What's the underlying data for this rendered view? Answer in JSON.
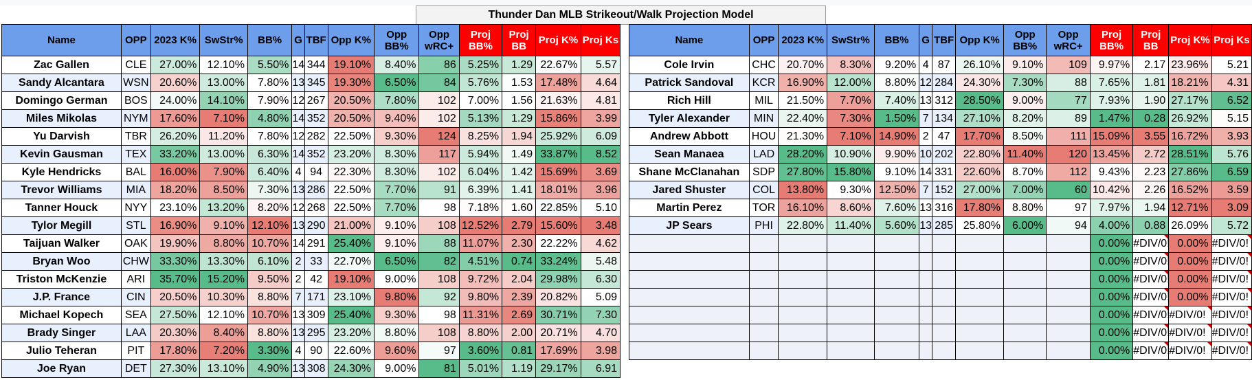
{
  "title": "Thunder Dan MLB Strikeout/Walk Projection Model",
  "colors": {
    "header_blue": "#6d9eeb",
    "header_red": "#ff0000",
    "good_strong": "#57bb8a",
    "bad_strong": "#e67c73",
    "row_stripe": "#e8f0fe"
  },
  "headers": [
    "Name",
    "OPP",
    "2023 K%",
    "SwStr%",
    "BB%",
    "G",
    "TBF",
    "Opp K%",
    "Opp BB%",
    "Opp wRC+",
    "Proj BB%",
    "Proj BB",
    "Proj K%",
    "Proj Ks"
  ],
  "left_rows": [
    [
      "Zac Gallen",
      "CLE",
      "27.00%",
      "12.10%",
      "5.50%",
      "14",
      "344",
      "19.10%",
      "8.40%",
      "86",
      "5.25%",
      "1.29",
      "22.67%",
      "5.57"
    ],
    [
      "Sandy Alcantara",
      "WSN",
      "20.60%",
      "13.00%",
      "7.80%",
      "13",
      "345",
      "19.30%",
      "6.50%",
      "84",
      "5.76%",
      "1.53",
      "17.48%",
      "4.64"
    ],
    [
      "Domingo German",
      "BOS",
      "24.00%",
      "14.10%",
      "7.90%",
      "12",
      "267",
      "20.50%",
      "7.80%",
      "102",
      "7.00%",
      "1.56",
      "21.63%",
      "4.81"
    ],
    [
      "Miles Mikolas",
      "NYM",
      "17.60%",
      "7.10%",
      "4.80%",
      "14",
      "352",
      "20.50%",
      "9.40%",
      "102",
      "5.13%",
      "1.29",
      "15.86%",
      "3.99"
    ],
    [
      "Yu Darvish",
      "TBR",
      "26.20%",
      "11.20%",
      "7.80%",
      "12",
      "282",
      "22.50%",
      "9.30%",
      "124",
      "8.25%",
      "1.94",
      "25.92%",
      "6.09"
    ],
    [
      "Kevin Gausman",
      "TEX",
      "33.20%",
      "13.00%",
      "6.30%",
      "14",
      "352",
      "23.20%",
      "8.30%",
      "117",
      "5.94%",
      "1.49",
      "33.87%",
      "8.52"
    ],
    [
      "Kyle Hendricks",
      "BAL",
      "16.00%",
      "7.90%",
      "6.40%",
      "4",
      "94",
      "22.30%",
      "8.30%",
      "102",
      "6.04%",
      "1.42",
      "15.69%",
      "3.69"
    ],
    [
      "Trevor Williams",
      "MIA",
      "18.20%",
      "8.50%",
      "7.30%",
      "13",
      "286",
      "22.50%",
      "7.70%",
      "91",
      "6.39%",
      "1.41",
      "18.01%",
      "3.96"
    ],
    [
      "Tanner Houck",
      "NYY",
      "23.10%",
      "13.20%",
      "8.20%",
      "12",
      "268",
      "22.50%",
      "7.70%",
      "98",
      "7.18%",
      "1.60",
      "22.85%",
      "5.10"
    ],
    [
      "Tylor Megill",
      "STL",
      "16.90%",
      "9.10%",
      "12.10%",
      "13",
      "290",
      "21.00%",
      "9.10%",
      "108",
      "12.52%",
      "2.79",
      "15.60%",
      "3.48"
    ],
    [
      "Taijuan Walker",
      "OAK",
      "19.90%",
      "8.80%",
      "10.70%",
      "14",
      "291",
      "25.40%",
      "9.10%",
      "88",
      "11.07%",
      "2.30",
      "22.22%",
      "4.62"
    ],
    [
      "Bryan Woo",
      "CHW",
      "33.30%",
      "13.30%",
      "6.10%",
      "2",
      "33",
      "22.70%",
      "6.50%",
      "82",
      "4.51%",
      "0.74",
      "33.24%",
      "5.48"
    ],
    [
      "Triston McKenzie",
      "ARI",
      "35.70%",
      "15.20%",
      "9.50%",
      "2",
      "42",
      "19.10%",
      "9.00%",
      "108",
      "9.72%",
      "2.04",
      "29.98%",
      "6.30"
    ],
    [
      "J.P. France",
      "CIN",
      "20.50%",
      "10.30%",
      "8.80%",
      "7",
      "171",
      "23.10%",
      "9.80%",
      "92",
      "9.80%",
      "2.39",
      "20.82%",
      "5.09"
    ],
    [
      "Michael Kopech",
      "SEA",
      "27.50%",
      "12.10%",
      "10.70%",
      "13",
      "309",
      "25.40%",
      "9.30%",
      "98",
      "11.31%",
      "2.69",
      "30.71%",
      "7.30"
    ],
    [
      "Brady Singer",
      "LAA",
      "20.30%",
      "8.40%",
      "8.80%",
      "13",
      "295",
      "23.20%",
      "8.80%",
      "108",
      "8.80%",
      "2.00",
      "20.71%",
      "4.70"
    ],
    [
      "Julio Teheran",
      "PIT",
      "17.80%",
      "7.20%",
      "3.30%",
      "4",
      "90",
      "22.60%",
      "9.60%",
      "97",
      "3.60%",
      "0.81",
      "17.69%",
      "3.98"
    ],
    [
      "Joe Ryan",
      "DET",
      "27.30%",
      "13.10%",
      "4.90%",
      "13",
      "308",
      "24.30%",
      "9.00%",
      "81",
      "5.01%",
      "1.19",
      "29.17%",
      "6.91"
    ]
  ],
  "right_rows": [
    [
      "Cole Irvin",
      "CHC",
      "20.70%",
      "8.30%",
      "9.20%",
      "4",
      "87",
      "26.10%",
      "9.10%",
      "109",
      "9.97%",
      "2.17",
      "23.96%",
      "5.21"
    ],
    [
      "Patrick Sandoval",
      "KCR",
      "16.90%",
      "12.00%",
      "8.80%",
      "12",
      "284",
      "24.30%",
      "7.30%",
      "88",
      "7.65%",
      "1.81",
      "18.21%",
      "4.31"
    ],
    [
      "Rich Hill",
      "MIL",
      "21.50%",
      "7.70%",
      "7.40%",
      "13",
      "312",
      "28.50%",
      "9.00%",
      "77",
      "7.93%",
      "1.90",
      "27.17%",
      "6.52"
    ],
    [
      "Tyler Alexander",
      "MIN",
      "22.40%",
      "7.30%",
      "1.50%",
      "7",
      "134",
      "27.10%",
      "8.20%",
      "89",
      "1.47%",
      "0.28",
      "26.92%",
      "5.15"
    ],
    [
      "Andrew Abbott",
      "HOU",
      "21.30%",
      "7.10%",
      "14.90%",
      "2",
      "47",
      "17.70%",
      "8.50%",
      "111",
      "15.09%",
      "3.55",
      "16.72%",
      "3.93"
    ],
    [
      "Sean Manaea",
      "LAD",
      "28.20%",
      "10.90%",
      "9.90%",
      "10",
      "202",
      "22.80%",
      "11.40%",
      "120",
      "13.45%",
      "2.72",
      "28.51%",
      "5.76"
    ],
    [
      "Shane McClanahan",
      "SDP",
      "27.80%",
      "15.80%",
      "9.10%",
      "14",
      "331",
      "22.60%",
      "8.70%",
      "112",
      "9.43%",
      "2.23",
      "27.86%",
      "6.59"
    ],
    [
      "Jared Shuster",
      "COL",
      "13.80%",
      "9.30%",
      "12.50%",
      "7",
      "152",
      "27.00%",
      "7.00%",
      "60",
      "10.42%",
      "2.26",
      "16.52%",
      "3.59"
    ],
    [
      "Martin Perez",
      "TOR",
      "16.10%",
      "8.60%",
      "7.60%",
      "13",
      "316",
      "17.80%",
      "8.80%",
      "97",
      "7.97%",
      "1.94",
      "12.71%",
      "3.09"
    ],
    [
      "JP Sears",
      "PHI",
      "22.80%",
      "11.40%",
      "5.60%",
      "13",
      "285",
      "25.80%",
      "6.00%",
      "94",
      "4.00%",
      "0.88",
      "26.09%",
      "5.72"
    ],
    [
      "",
      "",
      "",
      "",
      "",
      "",
      "",
      "",
      "",
      "",
      "0.00%",
      "#DIV/0!",
      "0.00%",
      "#DIV/0!"
    ],
    [
      "",
      "",
      "",
      "",
      "",
      "",
      "",
      "",
      "",
      "",
      "0.00%",
      "#DIV/0!",
      "0.00%",
      "#DIV/0!"
    ],
    [
      "",
      "",
      "",
      "",
      "",
      "",
      "",
      "",
      "",
      "",
      "0.00%",
      "#DIV/0!",
      "0.00%",
      "#DIV/0!"
    ],
    [
      "",
      "",
      "",
      "",
      "",
      "",
      "",
      "",
      "",
      "",
      "0.00%",
      "#DIV/0!",
      "0.00%",
      "#DIV/0!"
    ],
    [
      "",
      "",
      "",
      "",
      "",
      "",
      "",
      "",
      "",
      "",
      "0.00%",
      "#DIV/0!",
      "#DIV/0!",
      "#DIV/0!"
    ],
    [
      "",
      "",
      "",
      "",
      "",
      "",
      "",
      "",
      "",
      "",
      "0.00%",
      "#DIV/0!",
      "#DIV/0!",
      "#DIV/0!"
    ],
    [
      "",
      "",
      "",
      "",
      "",
      "",
      "",
      "",
      "",
      "",
      "0.00%",
      "#DIV/0!",
      "#DIV/0!",
      "#DIV/0!"
    ]
  ]
}
